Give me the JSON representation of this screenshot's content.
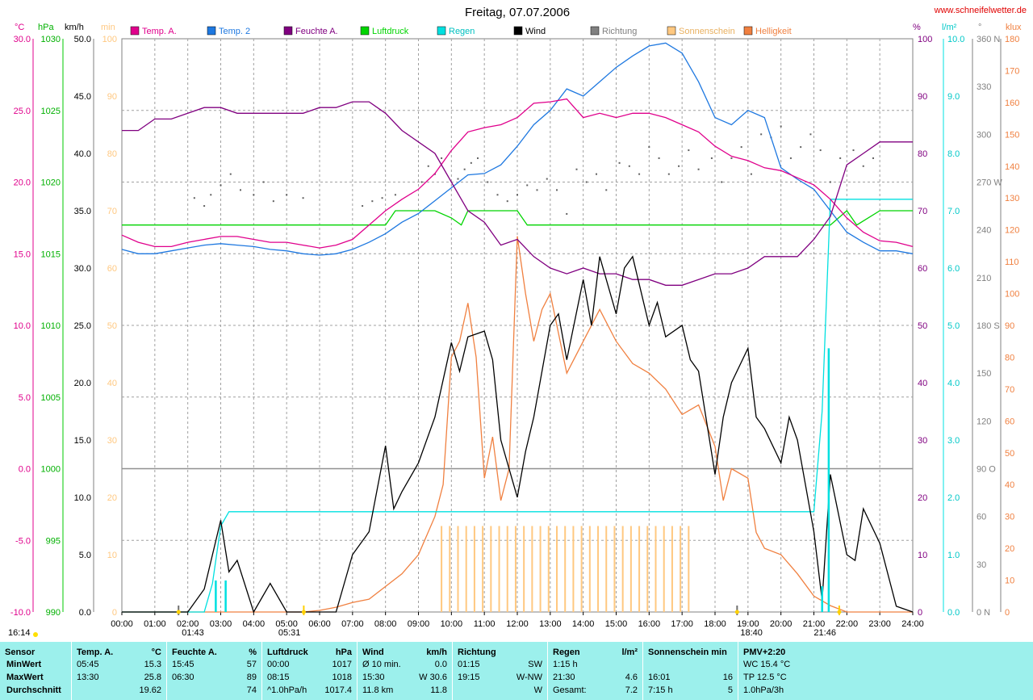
{
  "header": {
    "title": "Freitag, 07.07.2006",
    "site": "www.schneifelwetter.de"
  },
  "axes_labels": {
    "temp_unit": "°C",
    "press_unit": "hPa",
    "wind_unit": "km/h",
    "min_unit": "min",
    "hum_unit": "%",
    "rain_unit": "l/m²",
    "dir_unit": "°",
    "klux_unit": "klux"
  },
  "legend": [
    {
      "name": "Temp. A.",
      "color": "#e0008c"
    },
    {
      "name": "Temp. 2",
      "color": "#1e78e0"
    },
    {
      "name": "Feuchte A.",
      "color": "#800080"
    },
    {
      "name": "Luftdruck",
      "color": "#00d400"
    },
    {
      "name": "Regen",
      "color": "#00e0e0"
    },
    {
      "name": "Wind",
      "color": "#000000"
    },
    {
      "name": "Richtung",
      "color": "#808080"
    },
    {
      "name": "Sonnenschein",
      "color": "#ffc880"
    },
    {
      "name": "Helligkeit",
      "color": "#f08040"
    }
  ],
  "axis_ticks": {
    "temp": [
      "30.0",
      "25.0",
      "20.0",
      "15.0",
      "10.0",
      "5.0",
      "0.0",
      "-5.0",
      "-10.0"
    ],
    "press": [
      "1030",
      "1025",
      "1020",
      "1015",
      "1010",
      "1005",
      "1000",
      "995",
      "990"
    ],
    "wind": [
      "50.0",
      "45.0",
      "40.0",
      "35.0",
      "30.0",
      "25.0",
      "20.0",
      "15.0",
      "10.0",
      "5.0",
      "0.0"
    ],
    "minutes": [
      "100",
      "90",
      "80",
      "70",
      "60",
      "50",
      "40",
      "30",
      "20",
      "10",
      "0"
    ],
    "humidity": [
      "100",
      "90",
      "80",
      "70",
      "60",
      "50",
      "40",
      "30",
      "20",
      "10",
      "0"
    ],
    "rain": [
      "10.0",
      "9.0",
      "8.0",
      "7.0",
      "6.0",
      "5.0",
      "4.0",
      "3.0",
      "2.0",
      "1.0",
      "0.0"
    ],
    "direction": [
      "360 N",
      "330",
      "300",
      "270 W",
      "240",
      "210",
      "180 S",
      "150",
      "120",
      "90 O",
      "60",
      "30",
      "0 N"
    ],
    "klux": [
      "180",
      "170",
      "160",
      "150",
      "140",
      "130",
      "120",
      "110",
      "100",
      "90",
      "80",
      "70",
      "60",
      "50",
      "40",
      "30",
      "20",
      "10",
      "0"
    ],
    "time": [
      "00:00",
      "01:00",
      "02:00",
      "03:00",
      "04:00",
      "05:00",
      "06:00",
      "07:00",
      "08:00",
      "09:00",
      "10:00",
      "11:00",
      "12:00",
      "13:00",
      "14:00",
      "15:00",
      "16:00",
      "17:00",
      "18:00",
      "19:00",
      "20:00",
      "21:00",
      "22:00",
      "23:00",
      "24:00"
    ]
  },
  "markers": {
    "left_time": "16:14",
    "moonrise": "01:43",
    "sunrise": "05:31",
    "moonset": "18:40",
    "sunset": "21:46"
  },
  "chart_data": {
    "type": "line",
    "x_unit": "hours",
    "x_range": [
      0,
      24
    ],
    "temp_range": [
      -10,
      30
    ],
    "humidity_range": [
      0,
      100
    ],
    "wind_range": [
      0,
      50
    ],
    "rain_range": [
      0,
      10
    ],
    "klux_range": [
      0,
      180
    ],
    "direction_range": [
      0,
      360
    ],
    "pressure_range": [
      990,
      1030
    ],
    "series": [
      {
        "name": "Temp. A.",
        "axis": "temp",
        "x": [
          0,
          0.5,
          1,
          1.5,
          2,
          2.5,
          3,
          3.5,
          4,
          4.5,
          5,
          5.5,
          6,
          6.5,
          7,
          7.5,
          8,
          8.5,
          9,
          9.5,
          10,
          10.5,
          11,
          11.5,
          12,
          12.5,
          13,
          13.5,
          14,
          14.5,
          15,
          15.5,
          16,
          16.5,
          17,
          17.5,
          18,
          18.5,
          19,
          19.5,
          20,
          20.5,
          21,
          21.5,
          22,
          22.5,
          23,
          23.5,
          24
        ],
        "y": [
          16.3,
          15.8,
          15.5,
          15.5,
          15.8,
          16.0,
          16.2,
          16.2,
          16.0,
          15.8,
          15.8,
          15.6,
          15.4,
          15.6,
          16.0,
          17.0,
          18.0,
          18.8,
          19.5,
          20.6,
          22.2,
          23.5,
          23.8,
          24.0,
          24.5,
          25.5,
          25.6,
          25.8,
          24.5,
          24.8,
          24.5,
          24.8,
          24.8,
          24.5,
          24.0,
          23.5,
          22.5,
          21.8,
          21.5,
          21.0,
          20.8,
          20.3,
          19.8,
          18.8,
          17.5,
          16.5,
          15.9,
          15.8,
          15.5
        ]
      },
      {
        "name": "Temp. 2",
        "axis": "temp",
        "x": [
          0,
          0.5,
          1,
          1.5,
          2,
          2.5,
          3,
          3.5,
          4,
          4.5,
          5,
          5.5,
          6,
          6.5,
          7,
          7.5,
          8,
          8.5,
          9,
          9.5,
          10,
          10.5,
          11,
          11.5,
          12,
          12.5,
          13,
          13.5,
          14,
          14.5,
          15,
          15.5,
          16,
          16.5,
          17,
          17.5,
          18,
          18.5,
          19,
          19.5,
          20,
          20.5,
          21,
          21.5,
          22,
          22.5,
          23,
          23.5,
          24
        ],
        "y": [
          15.3,
          15.0,
          15.0,
          15.2,
          15.4,
          15.6,
          15.7,
          15.6,
          15.5,
          15.3,
          15.2,
          15.0,
          14.9,
          15.0,
          15.3,
          15.8,
          16.4,
          17.2,
          17.8,
          18.7,
          19.6,
          20.5,
          20.6,
          21.2,
          22.5,
          24.0,
          25.0,
          26.5,
          26.0,
          27.0,
          28.0,
          28.8,
          29.5,
          29.7,
          29.0,
          27.0,
          24.5,
          24.0,
          25.0,
          24.5,
          21.0,
          20.2,
          19.5,
          18.0,
          16.5,
          15.8,
          15.2,
          15.2,
          15.0
        ]
      },
      {
        "name": "Feuchte A.",
        "axis": "humidity",
        "x": [
          0,
          0.5,
          1,
          1.5,
          2,
          2.5,
          3,
          3.5,
          4,
          4.5,
          5,
          5.5,
          6,
          6.5,
          7,
          7.5,
          8,
          8.5,
          9,
          9.5,
          10,
          10.5,
          11,
          11.5,
          12,
          12.5,
          13,
          13.5,
          14,
          14.5,
          15,
          15.5,
          16,
          16.5,
          17,
          17.5,
          18,
          18.5,
          19,
          19.5,
          20,
          20.5,
          21,
          21.5,
          22,
          22.5,
          23,
          23.5,
          24
        ],
        "y": [
          84,
          84,
          86,
          86,
          87,
          88,
          88,
          87,
          87,
          87,
          87,
          87,
          88,
          88,
          89,
          89,
          87,
          84,
          82,
          80,
          75,
          70,
          68,
          64,
          65,
          62,
          60,
          59,
          60,
          59,
          59,
          58,
          58,
          57,
          57,
          58,
          59,
          59,
          60,
          62,
          62,
          62,
          65,
          69,
          78,
          80,
          82,
          82,
          82
        ]
      },
      {
        "name": "Luftdruck",
        "axis": "pressure",
        "x": [
          0,
          2,
          4,
          6,
          8,
          8.3,
          9.5,
          10,
          10.3,
          10.5,
          12,
          12.3,
          14,
          16,
          18,
          20,
          21,
          21.5,
          22,
          22.3,
          23,
          24
        ],
        "y": [
          1017,
          1017,
          1017,
          1017,
          1017,
          1018,
          1018,
          1017.5,
          1017,
          1018,
          1018,
          1017,
          1017,
          1017,
          1017,
          1017,
          1017,
          1017,
          1018,
          1017,
          1018,
          1018
        ]
      },
      {
        "name": "Wind",
        "axis": "wind",
        "x": [
          0,
          1,
          2,
          2.5,
          3,
          3.25,
          3.5,
          4,
          4.5,
          5,
          5.5,
          6,
          6.5,
          7,
          7.5,
          8,
          8.25,
          8.5,
          9,
          9.5,
          10,
          10.25,
          10.5,
          11,
          11.25,
          11.5,
          12,
          12.25,
          12.5,
          13,
          13.25,
          13.5,
          14,
          14.25,
          14.5,
          15,
          15.25,
          15.5,
          16,
          16.25,
          16.5,
          17,
          17.25,
          17.5,
          18,
          18.25,
          18.5,
          19,
          19.25,
          19.5,
          20,
          20.25,
          20.5,
          21,
          21.25,
          21.5,
          22,
          22.25,
          22.5,
          23,
          23.5,
          24
        ],
        "y": [
          0,
          0,
          0,
          2,
          8,
          3.5,
          4.5,
          0,
          2.5,
          0,
          0,
          0,
          0,
          5,
          7,
          14.5,
          9,
          10.5,
          13,
          17,
          23.5,
          21,
          24,
          24.5,
          22,
          15,
          10,
          14,
          17,
          25,
          26,
          22,
          29,
          25,
          31,
          26,
          30,
          31,
          25,
          27,
          24,
          25,
          22,
          21,
          12,
          17,
          20,
          23,
          17,
          16,
          13,
          17,
          15,
          7,
          1,
          12,
          5,
          4.5,
          9,
          6,
          0.5,
          0
        ]
      },
      {
        "name": "Helligkeit",
        "axis": "klux",
        "x": [
          0,
          1,
          2,
          3,
          4,
          5,
          5.5,
          6,
          6.5,
          7,
          7.5,
          8,
          8.5,
          9,
          9.5,
          9.75,
          10,
          10.25,
          10.5,
          10.75,
          11,
          11.25,
          11.5,
          11.75,
          12,
          12.25,
          12.5,
          12.75,
          13,
          13.5,
          14,
          14.5,
          15,
          15.5,
          16,
          16.5,
          17,
          17.5,
          18,
          18.25,
          18.5,
          19,
          19.25,
          19.5,
          20,
          20.25,
          20.5,
          21,
          21.5,
          22,
          22.25,
          22.5,
          23,
          24
        ],
        "y": [
          0,
          0,
          0,
          0,
          0,
          0,
          0,
          0.5,
          1.5,
          3,
          4,
          8,
          12,
          18,
          30,
          40,
          80,
          85,
          97,
          80,
          42,
          55,
          35,
          45,
          118,
          100,
          85,
          95,
          100,
          75,
          85,
          95,
          85,
          78,
          75,
          70,
          62,
          65,
          52,
          35,
          45,
          42,
          25,
          20,
          18,
          15,
          12,
          5,
          2,
          0,
          0,
          0,
          0,
          0
        ]
      },
      {
        "name": "Regen",
        "axis": "rain",
        "x": [
          0,
          2.5,
          2.75,
          3,
          3.25,
          21,
          21.25,
          21.5,
          22,
          23,
          24
        ],
        "y": [
          0,
          0,
          0.5,
          1.5,
          1.75,
          1.75,
          3.5,
          7.2,
          7.2,
          7.2,
          7.2
        ]
      }
    ],
    "rain_bars": [
      {
        "x": 2.85,
        "y": 0.55
      },
      {
        "x": 3.15,
        "y": 0.55
      },
      {
        "x": 21.25,
        "y": 0.45
      },
      {
        "x": 21.45,
        "y": 4.6
      }
    ],
    "sunshine_minutes": {
      "start": 9.7,
      "end": 17.3,
      "step": 0.25,
      "value": 15,
      "gaps": [
        [
          10.95,
          11.2
        ]
      ]
    },
    "direction_points": {
      "x": [
        2.2,
        2.5,
        2.7,
        3.0,
        3.3,
        3.6,
        4.0,
        4.3,
        4.6,
        5.0,
        5.5,
        7.3,
        7.6,
        7.9,
        8.3,
        9.1,
        9.3,
        9.5,
        9.7,
        10.2,
        10.4,
        10.6,
        10.8,
        11.1,
        11.4,
        11.7,
        12.0,
        12.3,
        12.6,
        12.9,
        13.2,
        13.5,
        13.8,
        14.1,
        14.4,
        14.7,
        15.1,
        15.4,
        15.7,
        16.0,
        16.3,
        16.6,
        16.9,
        17.2,
        17.5,
        17.9,
        18.2,
        18.5,
        18.8,
        19.1,
        19.4,
        19.7,
        20.0,
        20.3,
        20.6,
        20.9,
        21.2,
        21.5,
        21.8,
        22.2,
        22.5,
        22.8
      ],
      "y": [
        260,
        255,
        262,
        268,
        275,
        265,
        262,
        270,
        258,
        262,
        260,
        255,
        258,
        260,
        262,
        270,
        280,
        275,
        285,
        272,
        278,
        282,
        285,
        270,
        262,
        258,
        262,
        268,
        265,
        272,
        265,
        250,
        278,
        270,
        275,
        265,
        282,
        280,
        275,
        292,
        285,
        275,
        280,
        290,
        278,
        285,
        270,
        285,
        292,
        275,
        300,
        298,
        305,
        285,
        292,
        300,
        290,
        270,
        285,
        290,
        280,
        285
      ]
    }
  },
  "summary": {
    "sensor": {
      "h": "Sensor",
      "rows": [
        "MinWert",
        "MaxWert",
        "Durchschnitt"
      ]
    },
    "temp": {
      "h": "Temp. A.",
      "u": "°C",
      "rows": [
        [
          "05:45",
          "15.3"
        ],
        [
          "13:30",
          "25.8"
        ],
        [
          "",
          "19.62"
        ]
      ]
    },
    "hum": {
      "h": "Feuchte A.",
      "u": "%",
      "rows": [
        [
          "15:45",
          "57"
        ],
        [
          "06:30",
          "89"
        ],
        [
          "",
          "74"
        ]
      ]
    },
    "press": {
      "h": "Luftdruck",
      "u": "hPa",
      "rows": [
        [
          "00:00",
          "1017"
        ],
        [
          "08:15",
          "1018"
        ],
        [
          "^1.0hPa/h",
          "1017.4"
        ]
      ]
    },
    "wind": {
      "h": "Wind",
      "u": "km/h",
      "rows": [
        [
          "Ø 10 min.",
          "0.0"
        ],
        [
          "15:30",
          "W 30.6"
        ],
        [
          "11.8 km",
          "11.8"
        ]
      ]
    },
    "dir": {
      "h": "Richtung",
      "u": "",
      "rows": [
        [
          "01:15",
          "SW"
        ],
        [
          "19:15",
          "W-NW"
        ],
        [
          "",
          "W"
        ]
      ]
    },
    "rain": {
      "h": "Regen",
      "u": "l/m²",
      "rows": [
        [
          "1:15 h",
          ""
        ],
        [
          "21:30",
          "4.6"
        ],
        [
          "Gesamt:",
          "7.2"
        ]
      ]
    },
    "sun": {
      "h": "Sonnenschein min",
      "u": "",
      "rows": [
        [
          "",
          ""
        ],
        [
          "16:01",
          "16"
        ],
        [
          "7:15 h",
          "5"
        ]
      ]
    },
    "pmv": {
      "h": "PMV+2:20",
      "u": "",
      "rows": [
        [
          "WC 15.4 °C",
          ""
        ],
        [
          "TP 12.5 °C",
          ""
        ],
        [
          "1.0hPa/3h",
          ""
        ]
      ]
    }
  }
}
